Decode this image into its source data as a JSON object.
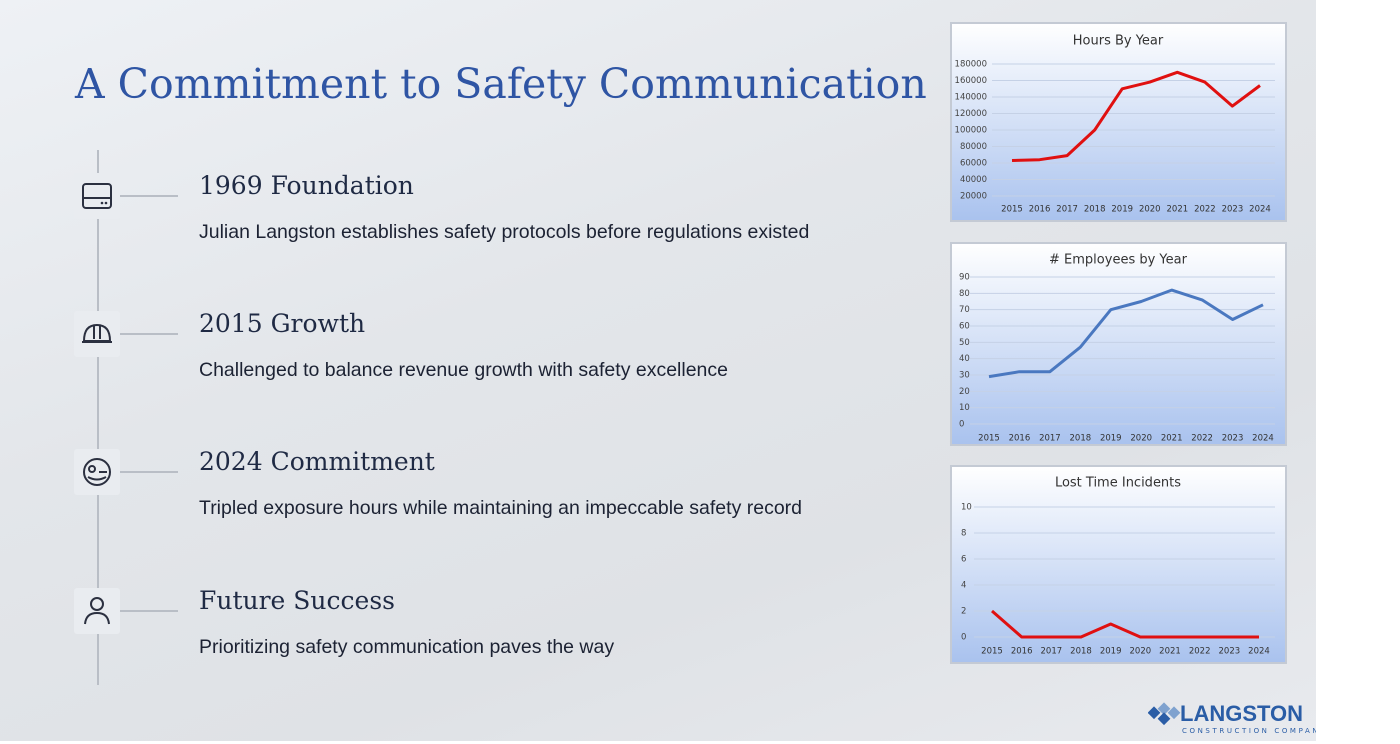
{
  "title": "A Commitment to Safety Communication",
  "timeline": [
    {
      "heading": "1969 Foundation",
      "text": "Julian Langston establishes safety protocols before regulations existed"
    },
    {
      "heading": "2015 Growth",
      "text": "Challenged to balance revenue growth with safety excellence"
    },
    {
      "heading": "2024 Commitment",
      "text": "Tripled exposure hours while maintaining an impeccable safety record"
    },
    {
      "heading": "Future Success",
      "text": "Prioritizing safety communication paves the way"
    }
  ],
  "logo": {
    "name": "LANGSTON",
    "tagline": "CONSTRUCTION COMPANY"
  },
  "chart_data": [
    {
      "type": "line",
      "title": "Hours By Year",
      "color": "#e01010",
      "categories": [
        "2015",
        "2016",
        "2017",
        "2018",
        "2019",
        "2020",
        "2021",
        "2022",
        "2023",
        "2024"
      ],
      "values": [
        63000,
        64000,
        69000,
        100000,
        150000,
        158000,
        170000,
        158000,
        129000,
        154000
      ],
      "ylim": [
        20000,
        180000
      ],
      "yticks": [
        20000,
        40000,
        60000,
        80000,
        100000,
        120000,
        140000,
        160000,
        180000
      ],
      "grid": true
    },
    {
      "type": "line",
      "title": "# Employees by Year",
      "color": "#4a78c0",
      "categories": [
        "2015",
        "2016",
        "2017",
        "2018",
        "2019",
        "2020",
        "2021",
        "2022",
        "2023",
        "2024"
      ],
      "values": [
        29,
        32,
        32,
        47,
        70,
        75,
        82,
        76,
        64,
        73
      ],
      "ylim": [
        0,
        90
      ],
      "yticks": [
        0,
        10,
        20,
        30,
        40,
        50,
        60,
        70,
        80,
        90
      ],
      "grid": true
    },
    {
      "type": "line",
      "title": "Lost Time Incidents",
      "color": "#e01010",
      "categories": [
        "2015",
        "2016",
        "2017",
        "2018",
        "2019",
        "2020",
        "2021",
        "2022",
        "2023",
        "2024"
      ],
      "values": [
        2,
        0,
        0,
        0,
        1,
        0,
        0,
        0,
        0,
        0
      ],
      "ylim": [
        0,
        10
      ],
      "yticks": [
        0,
        2,
        4,
        6,
        8,
        10
      ],
      "grid": true
    }
  ]
}
